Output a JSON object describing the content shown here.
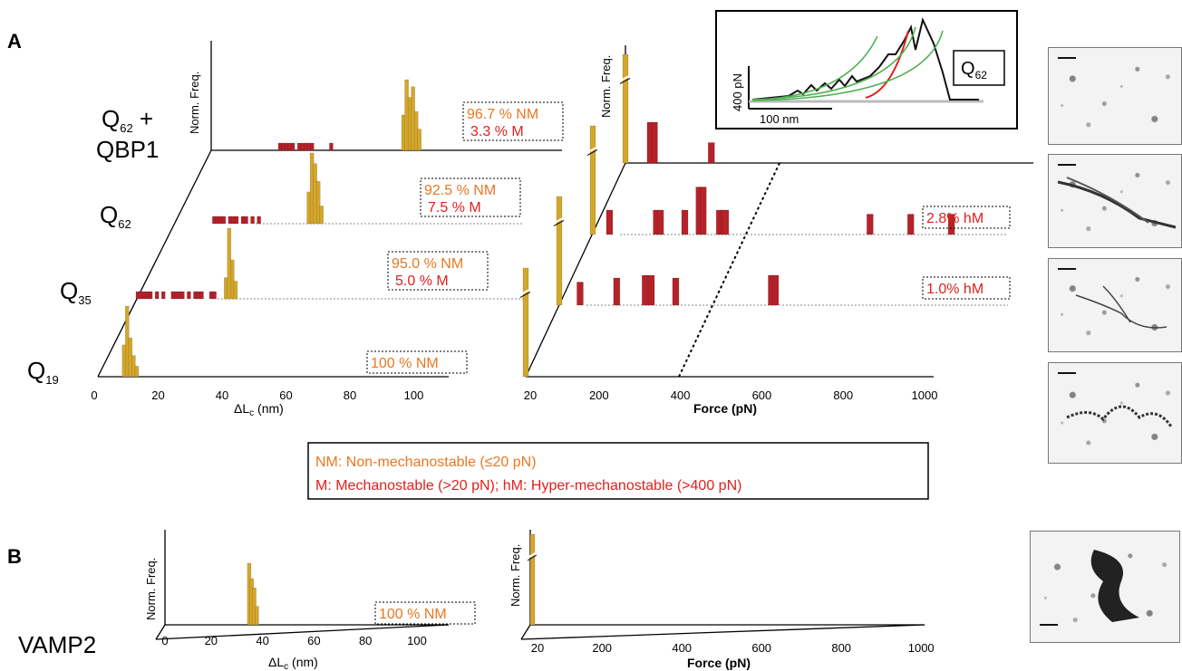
{
  "colors": {
    "nm": "#d4a72c",
    "m": "#b5222a",
    "nm_text": "#e87722",
    "m_text": "#e0201e"
  },
  "panels": {
    "a": {
      "letter": "A"
    },
    "b": {
      "letter": "B"
    }
  },
  "rows_a": [
    {
      "label_main": "Q",
      "label_sub": "62",
      "label_suffix": " +",
      "label_line2": "QBP1",
      "nm_pct": "96.7 % NM",
      "m_pct": "3.3 % M",
      "hm_pct": ""
    },
    {
      "label_main": "Q",
      "label_sub": "62",
      "label_suffix": "",
      "label_line2": "",
      "nm_pct": "92.5 % NM",
      "m_pct": "7.5 % M",
      "hm_pct": "2.8% hM"
    },
    {
      "label_main": "Q",
      "label_sub": "35",
      "label_suffix": "",
      "label_line2": "",
      "nm_pct": "95.0 % NM",
      "m_pct": "5.0 % M",
      "hm_pct": "1.0% hM"
    },
    {
      "label_main": "Q",
      "label_sub": "19",
      "label_suffix": "",
      "label_line2": "",
      "nm_pct": "100 % NM",
      "m_pct": "",
      "hm_pct": ""
    }
  ],
  "axes": {
    "norm_freq": "Norm. Freq.",
    "dlc_prefix": "ΔL",
    "dlc_sub": "c",
    "dlc_suffix": " (nm)",
    "force_label": "Force (pN)"
  },
  "inset": {
    "ylabel": "400 pN",
    "scalebar": "100 nm",
    "box_main": "Q",
    "box_sub": "62"
  },
  "legend": {
    "line1": "NM: Non-mechanostable (≤20 pN)",
    "line2": "M: Mechanostable (>20 pN); hM: Hyper-mechanostable (>400 pN)"
  },
  "panel_b": {
    "label": "VAMP2",
    "nm_pct": "100 % NM"
  },
  "chart_data": [
    {
      "type": "bar",
      "panel": "A",
      "title": "",
      "xlabel": "ΔLc (nm)",
      "ylabel": "Norm. Freq.",
      "xlim": [
        0,
        110
      ],
      "xticks": [
        0,
        20,
        40,
        60,
        80,
        100
      ],
      "series": [
        {
          "name": "Q19",
          "nm_x": [
            11,
            12,
            13,
            14,
            15
          ],
          "nm_h": [
            0.45,
            1.0,
            0.55,
            0.3,
            0.15
          ],
          "m_x": []
        },
        {
          "name": "Q35",
          "nm_x": [
            31,
            32,
            33,
            34
          ],
          "nm_h": [
            0.3,
            1.0,
            0.55,
            0.25
          ],
          "m_x": [
            0,
            1,
            2,
            3,
            4,
            6,
            8,
            11,
            12,
            13,
            14,
            16,
            18,
            19,
            20,
            23,
            24
          ]
        },
        {
          "name": "Q62",
          "nm_x": [
            45,
            46,
            47,
            48,
            49
          ],
          "nm_h": [
            0.45,
            1.0,
            0.85,
            0.6,
            0.25
          ],
          "m_x": [
            12,
            13,
            14,
            15,
            17,
            18,
            19,
            21,
            22,
            24,
            26
          ]
        },
        {
          "name": "Q62 + QBP1",
          "nm_x": [
            63,
            64,
            65,
            66,
            67,
            68
          ],
          "nm_h": [
            0.5,
            1.0,
            0.75,
            0.9,
            0.55,
            0.3
          ],
          "m_x": [
            21,
            22,
            23,
            24,
            25,
            27,
            28,
            29,
            30,
            31,
            37
          ]
        }
      ]
    },
    {
      "type": "bar",
      "panel": "A",
      "title": "",
      "xlabel": "Force (pN)",
      "ylabel": "Norm. Freq.",
      "xlim": [
        0,
        1000
      ],
      "xticks": [
        20,
        200,
        400,
        600,
        800,
        1000
      ],
      "threshold_pN": 400,
      "series": [
        {
          "name": "Q19",
          "bars": [
            {
              "x": 20,
              "h": 1.0,
              "type": "NM"
            }
          ]
        },
        {
          "name": "Q35",
          "bars": [
            {
              "x": 20,
              "h": 1.0,
              "type": "NM"
            },
            {
              "x": 70,
              "h": 0.17,
              "type": "M"
            },
            {
              "x": 160,
              "h": 0.2,
              "type": "M"
            },
            {
              "x": 230,
              "h": 0.22,
              "type": "M"
            },
            {
              "x": 245,
              "h": 0.22,
              "type": "M"
            },
            {
              "x": 305,
              "h": 0.2,
              "type": "M"
            },
            {
              "x": 540,
              "h": 0.22,
              "type": "hM"
            },
            {
              "x": 550,
              "h": 0.22,
              "type": "hM"
            }
          ]
        },
        {
          "name": "Q62",
          "bars": [
            {
              "x": 20,
              "h": 1.0,
              "type": "NM"
            },
            {
              "x": 60,
              "h": 0.18,
              "type": "M"
            },
            {
              "x": 175,
              "h": 0.18,
              "type": "M"
            },
            {
              "x": 185,
              "h": 0.18,
              "type": "M"
            },
            {
              "x": 245,
              "h": 0.18,
              "type": "M"
            },
            {
              "x": 280,
              "h": 0.35,
              "type": "M"
            },
            {
              "x": 290,
              "h": 0.35,
              "type": "M"
            },
            {
              "x": 330,
              "h": 0.18,
              "type": "M"
            },
            {
              "x": 340,
              "h": 0.18,
              "type": "M"
            },
            {
              "x": 345,
              "h": 0.18,
              "type": "M"
            },
            {
              "x": 700,
              "h": 0.15,
              "type": "hM"
            },
            {
              "x": 800,
              "h": 0.15,
              "type": "hM"
            },
            {
              "x": 900,
              "h": 0.15,
              "type": "hM"
            }
          ]
        },
        {
          "name": "Q62 + QBP1",
          "bars": [
            {
              "x": 20,
              "h": 1.0,
              "type": "NM"
            },
            {
              "x": 80,
              "h": 0.3,
              "type": "M"
            },
            {
              "x": 90,
              "h": 0.3,
              "type": "M"
            },
            {
              "x": 230,
              "h": 0.15,
              "type": "M"
            }
          ]
        }
      ]
    },
    {
      "type": "line",
      "panel": "A inset",
      "title": "",
      "xlabel": "",
      "ylabel": "",
      "scalebars": {
        "x": "100 nm",
        "y": "400 pN"
      },
      "series": [
        {
          "name": "Q62",
          "x": [
            0,
            10,
            20,
            40,
            60,
            80,
            90,
            100,
            110,
            120,
            130,
            140,
            150,
            160,
            170,
            180,
            190,
            200,
            210,
            220,
            230,
            240,
            250,
            260
          ],
          "y": [
            0,
            50,
            60,
            80,
            110,
            250,
            120,
            300,
            150,
            350,
            200,
            380,
            160,
            420,
            200,
            600,
            750,
            820,
            900,
            400,
            30,
            20,
            20,
            20
          ]
        }
      ]
    },
    {
      "type": "bar",
      "panel": "B",
      "title": "",
      "xlabel": "ΔLc (nm)",
      "ylabel": "Norm. Freq.",
      "xlim": [
        0,
        110
      ],
      "xticks": [
        0,
        20,
        40,
        60,
        80,
        100
      ],
      "series": [
        {
          "name": "VAMP2",
          "nm_x": [
            32,
            33,
            34,
            35
          ],
          "nm_h": [
            1.0,
            0.75,
            0.6,
            0.3
          ],
          "m_x": []
        }
      ]
    },
    {
      "type": "bar",
      "panel": "B",
      "title": "",
      "xlabel": "Force (pN)",
      "ylabel": "Norm. Freq.",
      "xlim": [
        0,
        1000
      ],
      "xticks": [
        20,
        200,
        400,
        600,
        800,
        1000
      ],
      "series": [
        {
          "name": "VAMP2",
          "bars": [
            {
              "x": 20,
              "h": 1.0,
              "type": "NM"
            }
          ]
        }
      ]
    }
  ]
}
